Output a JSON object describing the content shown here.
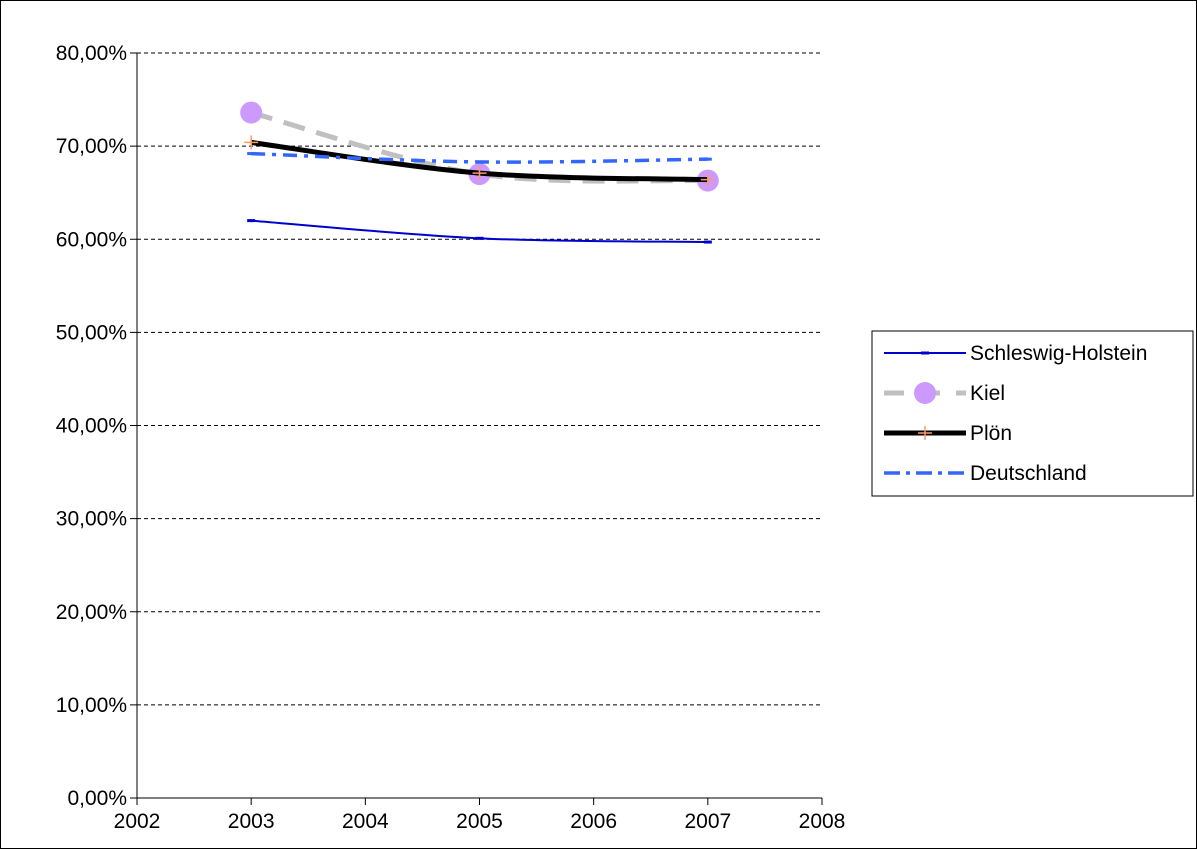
{
  "chart_data": {
    "type": "line",
    "x_ticks": [
      "2002",
      "2003",
      "2004",
      "2005",
      "2006",
      "2007",
      "2008"
    ],
    "xlim": [
      2002,
      2008
    ],
    "y_ticks": [
      "0,00%",
      "10,00%",
      "20,00%",
      "30,00%",
      "40,00%",
      "50,00%",
      "60,00%",
      "70,00%",
      "80,00%"
    ],
    "ylim": [
      0,
      80
    ],
    "grid": "horizontal-dashed",
    "legend_position": "right",
    "series": [
      {
        "name": "Schleswig-Holstein",
        "x": [
          2003,
          2005,
          2007
        ],
        "values": [
          62.0,
          60.1,
          59.7
        ],
        "color": "#0000CC",
        "style": "solid-thin",
        "marker": "dash"
      },
      {
        "name": "Kiel",
        "x": [
          2003,
          2005,
          2007
        ],
        "values": [
          73.6,
          67.0,
          66.3
        ],
        "color": "#C0C0C0",
        "marker_color": "#CC99FF",
        "style": "dashed-thick",
        "marker": "circle"
      },
      {
        "name": "Plön",
        "x": [
          2003,
          2005,
          2007
        ],
        "values": [
          70.4,
          67.1,
          66.4
        ],
        "color": "#000000",
        "marker_color": "#FF9966",
        "style": "solid-thick",
        "marker": "plus"
      },
      {
        "name": "Deutschland",
        "x": [
          2003,
          2005,
          2007
        ],
        "values": [
          69.2,
          68.3,
          68.6
        ],
        "color": "#3366FF",
        "style": "dash-dot",
        "marker": "dash"
      }
    ]
  }
}
